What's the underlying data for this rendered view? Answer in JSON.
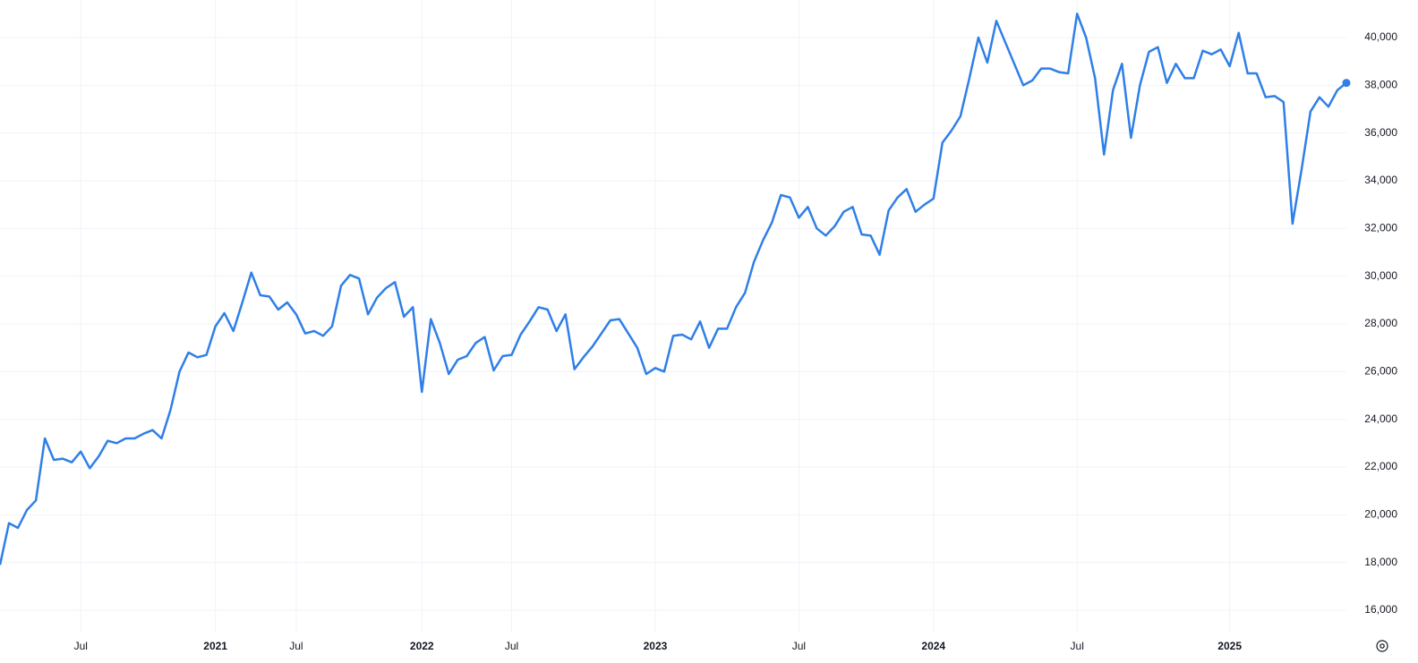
{
  "chart_data": {
    "type": "line",
    "categories": [
      null,
      null,
      null,
      null,
      null,
      null,
      null,
      null,
      null,
      "Jul",
      null,
      null,
      null,
      null,
      null,
      null,
      null,
      null,
      null,
      null,
      null,
      null,
      null,
      null,
      "2021",
      null,
      null,
      null,
      null,
      null,
      null,
      null,
      null,
      "Jul",
      null,
      null,
      null,
      null,
      null,
      null,
      null,
      null,
      null,
      null,
      null,
      null,
      null,
      "2022",
      null,
      null,
      null,
      null,
      null,
      null,
      null,
      null,
      null,
      "Jul",
      null,
      null,
      null,
      null,
      null,
      null,
      null,
      null,
      null,
      null,
      null,
      null,
      null,
      null,
      null,
      "2023",
      null,
      null,
      null,
      null,
      null,
      null,
      null,
      null,
      null,
      null,
      null,
      null,
      null,
      null,
      null,
      "Jul",
      null,
      null,
      null,
      null,
      null,
      null,
      null,
      null,
      null,
      null,
      null,
      null,
      null,
      null,
      "2024",
      null,
      null,
      null,
      null,
      null,
      null,
      null,
      null,
      null,
      null,
      null,
      null,
      null,
      null,
      null,
      "Jul",
      null,
      null,
      null,
      null,
      null,
      null,
      null,
      null,
      null,
      null,
      null,
      null,
      null,
      null,
      null,
      null,
      "2025",
      null,
      null,
      null,
      null,
      null,
      null,
      null,
      null,
      null,
      null,
      null,
      null,
      null
    ],
    "series": [
      {
        "color": "#2e7fe8",
        "values": [
          17900,
          19650,
          19450,
          20200,
          20600,
          23200,
          22300,
          22350,
          22200,
          22650,
          21950,
          22450,
          23100,
          23000,
          23200,
          23200,
          23400,
          23550,
          23200,
          24400,
          26000,
          26800,
          26600,
          26700,
          27900,
          28450,
          27700,
          28900,
          30150,
          29200,
          29150,
          28600,
          28900,
          28400,
          27600,
          27700,
          27500,
          27900,
          29600,
          30050,
          29900,
          28400,
          29100,
          29500,
          29750,
          28300,
          28700,
          25150,
          28200,
          27200,
          25900,
          26500,
          26650,
          27200,
          27450,
          26050,
          26650,
          26700,
          27550,
          28100,
          28700,
          28600,
          27700,
          28400,
          26100,
          26600,
          27050,
          27600,
          28150,
          28200,
          27600,
          27000,
          25900,
          26150,
          26000,
          27500,
          27550,
          27350,
          28100,
          27000,
          27800,
          27800,
          28700,
          29300,
          30600,
          31500,
          32250,
          33400,
          33300,
          32450,
          32900,
          32000,
          31700,
          32100,
          32700,
          32900,
          31750,
          31700,
          30900,
          32750,
          33300,
          33650,
          32700,
          33000,
          33250,
          35600,
          36100,
          36700,
          38300,
          40000,
          38950,
          40700,
          39800,
          38900,
          38000,
          38200,
          38700,
          38700,
          38550,
          38500,
          41000,
          40000,
          38300,
          35100,
          37800,
          38900,
          35800,
          38000,
          39400,
          39600,
          38100,
          38900,
          38300,
          38300,
          39450,
          39300,
          39500,
          38800,
          40200,
          38500,
          38500,
          37500,
          37550,
          37300,
          32200,
          34450,
          36900,
          37500,
          37100,
          37800,
          38100
        ]
      }
    ],
    "ylim": [
      15100,
      41575
    ],
    "yticks": [
      {
        "value": 16000,
        "label": "16,000"
      },
      {
        "value": 18000,
        "label": "18,000"
      },
      {
        "value": 20000,
        "label": "20,000"
      },
      {
        "value": 22000,
        "label": "22,000"
      },
      {
        "value": 24000,
        "label": "24,000"
      },
      {
        "value": 26000,
        "label": "26,000"
      },
      {
        "value": 28000,
        "label": "28,000"
      },
      {
        "value": 30000,
        "label": "30,000"
      },
      {
        "value": 32000,
        "label": "32,000"
      },
      {
        "value": 34000,
        "label": "34,000"
      },
      {
        "value": 36000,
        "label": "36,000"
      },
      {
        "value": 38000,
        "label": "38,000"
      },
      {
        "value": 40000,
        "label": "40,000"
      }
    ],
    "grid": true
  }
}
